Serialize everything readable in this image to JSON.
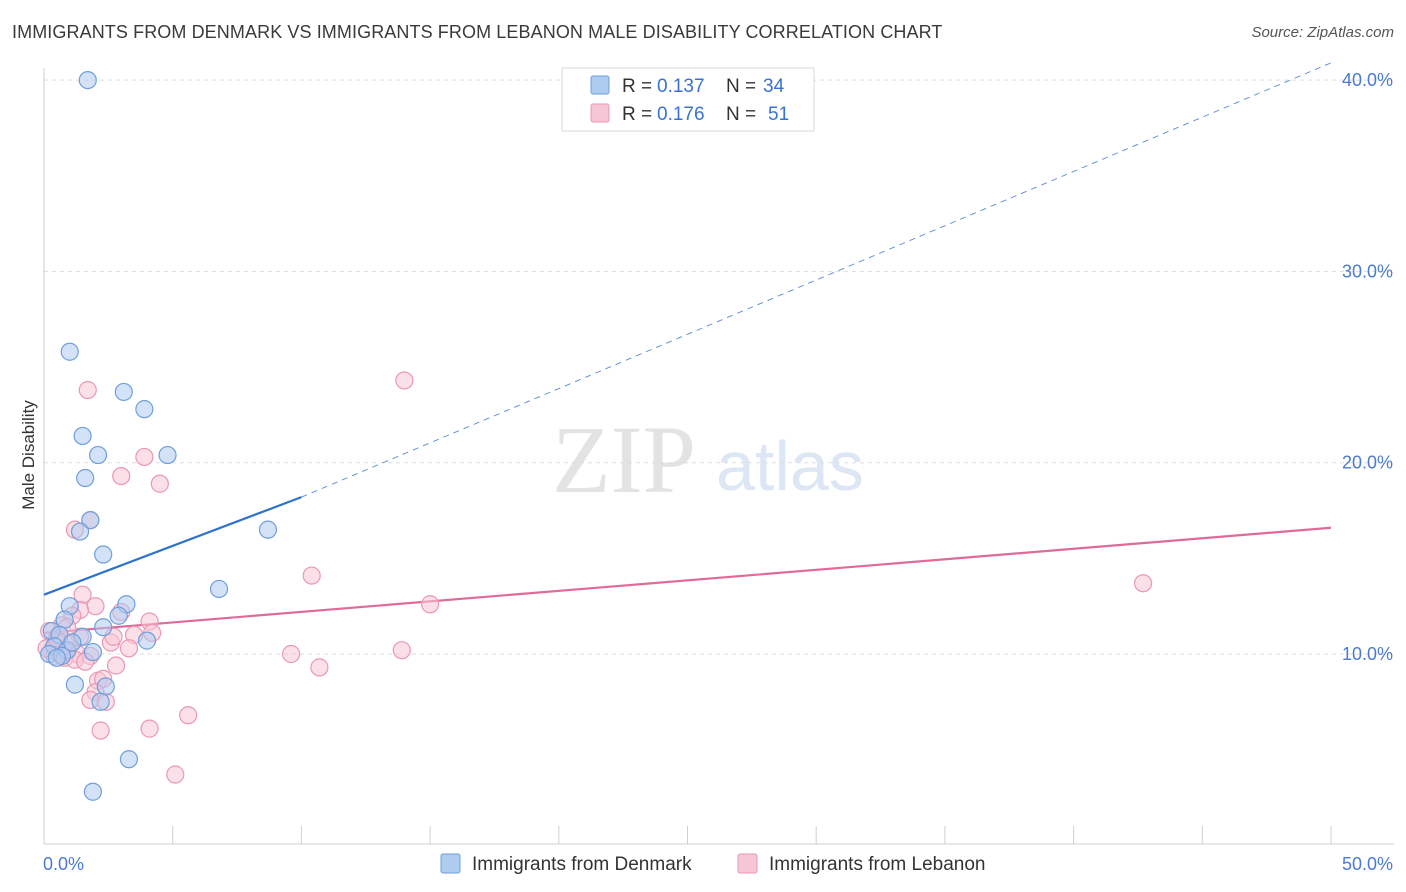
{
  "header": {
    "title": "IMMIGRANTS FROM DENMARK VS IMMIGRANTS FROM LEBANON MALE DISABILITY CORRELATION CHART",
    "source": "Source: ZipAtlas.com"
  },
  "watermark": {
    "part1": "ZIP",
    "part2": "atlas"
  },
  "legend_top": {
    "rows": [
      {
        "r_label": "R =",
        "r_value": "0.137",
        "n_label": "N =",
        "n_value": "34"
      },
      {
        "r_label": "R =",
        "r_value": "0.176",
        "n_label": "N =",
        "n_value": "51"
      }
    ]
  },
  "colors": {
    "denmark_fill": "#aecbf0",
    "denmark_stroke": "#6f9fdc",
    "denmark_line": "#2f72cc",
    "lebanon_fill": "#f7c6d6",
    "lebanon_stroke": "#eb97b4",
    "lebanon_line": "#e06a98",
    "grid": "#dddddd",
    "tick": "#4a7bd0"
  },
  "chart_data": {
    "type": "scatter",
    "title": "IMMIGRANTS FROM DENMARK VS IMMIGRANTS FROM LEBANON MALE DISABILITY CORRELATION CHART",
    "xlabel": "",
    "ylabel": "Male Disability",
    "xlim": [
      0,
      50
    ],
    "ylim": [
      0,
      41
    ],
    "x_tick_labels": [
      "0.0%",
      "50.0%"
    ],
    "y_ticks": [
      10,
      20,
      30,
      40
    ],
    "y_tick_labels": [
      "10.0%",
      "20.0%",
      "30.0%",
      "40.0%"
    ],
    "grid": true,
    "legend_position": "bottom",
    "series": [
      {
        "name": "Immigrants from Denmark",
        "R": 0.137,
        "N": 34,
        "points": [
          [
            1.7,
            40.0
          ],
          [
            1.0,
            25.8
          ],
          [
            3.1,
            23.7
          ],
          [
            3.9,
            22.8
          ],
          [
            1.5,
            21.4
          ],
          [
            2.1,
            20.4
          ],
          [
            4.8,
            20.4
          ],
          [
            1.6,
            19.2
          ],
          [
            1.8,
            17.0
          ],
          [
            1.4,
            16.4
          ],
          [
            8.7,
            16.5
          ],
          [
            2.3,
            15.2
          ],
          [
            6.8,
            13.4
          ],
          [
            1.0,
            12.5
          ],
          [
            3.2,
            12.6
          ],
          [
            2.9,
            12.0
          ],
          [
            0.8,
            11.8
          ],
          [
            2.3,
            11.4
          ],
          [
            0.3,
            11.2
          ],
          [
            0.6,
            11.0
          ],
          [
            1.5,
            10.9
          ],
          [
            4.0,
            10.7
          ],
          [
            0.4,
            10.4
          ],
          [
            0.9,
            10.2
          ],
          [
            0.2,
            10.0
          ],
          [
            0.7,
            9.9
          ],
          [
            1.1,
            10.6
          ],
          [
            1.9,
            10.1
          ],
          [
            0.5,
            9.8
          ],
          [
            1.2,
            8.4
          ],
          [
            2.4,
            8.3
          ],
          [
            2.2,
            7.5
          ],
          [
            3.3,
            4.5
          ],
          [
            1.9,
            2.8
          ]
        ],
        "trend": {
          "x0": 0,
          "y0": 13.1,
          "x1": 10,
          "y1": 18.2,
          "extended_to": [
            50,
            40.9
          ]
        }
      },
      {
        "name": "Immigrants from Lebanon",
        "R": 0.176,
        "N": 51,
        "points": [
          [
            14.0,
            24.3
          ],
          [
            1.7,
            23.8
          ],
          [
            3.9,
            20.3
          ],
          [
            3.0,
            19.3
          ],
          [
            4.5,
            18.9
          ],
          [
            1.8,
            17.0
          ],
          [
            1.2,
            16.5
          ],
          [
            10.4,
            14.1
          ],
          [
            42.7,
            13.7
          ],
          [
            1.5,
            13.1
          ],
          [
            15.0,
            12.6
          ],
          [
            2.0,
            12.5
          ],
          [
            1.4,
            12.3
          ],
          [
            3.0,
            12.2
          ],
          [
            1.1,
            12.0
          ],
          [
            4.1,
            11.7
          ],
          [
            0.7,
            11.5
          ],
          [
            0.2,
            11.2
          ],
          [
            3.5,
            11.0
          ],
          [
            4.2,
            11.1
          ],
          [
            1.4,
            10.9
          ],
          [
            0.5,
            10.6
          ],
          [
            1.0,
            10.5
          ],
          [
            2.6,
            10.6
          ],
          [
            3.3,
            10.3
          ],
          [
            0.3,
            10.2
          ],
          [
            0.6,
            10.0
          ],
          [
            0.9,
            10.1
          ],
          [
            1.3,
            10.0
          ],
          [
            1.8,
            9.9
          ],
          [
            0.4,
            9.9
          ],
          [
            0.8,
            9.8
          ],
          [
            1.2,
            9.7
          ],
          [
            13.9,
            10.2
          ],
          [
            9.6,
            10.0
          ],
          [
            10.7,
            9.3
          ],
          [
            2.8,
            9.4
          ],
          [
            2.1,
            8.6
          ],
          [
            2.3,
            8.7
          ],
          [
            2.0,
            8.0
          ],
          [
            1.8,
            7.6
          ],
          [
            2.4,
            7.5
          ],
          [
            5.6,
            6.8
          ],
          [
            2.2,
            6.0
          ],
          [
            4.1,
            6.1
          ],
          [
            5.1,
            3.7
          ],
          [
            0.1,
            10.3
          ],
          [
            0.5,
            10.8
          ],
          [
            1.6,
            9.6
          ],
          [
            2.7,
            10.9
          ],
          [
            0.9,
            11.4
          ]
        ],
        "trend": {
          "x0": 0,
          "y0": 11.1,
          "x1": 50,
          "y1": 16.6
        }
      }
    ]
  },
  "legend_bottom": {
    "items": [
      {
        "label": "Immigrants from Denmark"
      },
      {
        "label": "Immigrants from Lebanon"
      }
    ]
  }
}
